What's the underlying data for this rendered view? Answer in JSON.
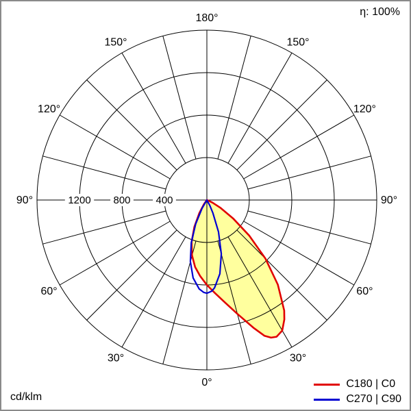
{
  "chart_data": {
    "type": "polar_photometric",
    "title": "",
    "unit": "cd/klm",
    "efficiency": "η: 100%",
    "radial_max": 1600,
    "ring_values": [
      400,
      800,
      1200,
      1600
    ],
    "radial_ticks": [
      1200,
      800,
      400
    ],
    "spoke_step_deg": 15,
    "angle_label_step_deg": 30,
    "angle_labels": [
      "0°",
      "30°",
      "60°",
      "90°",
      "120°",
      "150°",
      "180°"
    ],
    "grid_color": "#000000",
    "series": [
      {
        "name": "C180 | C0",
        "color": "#e10000",
        "fill": "#ffff9e",
        "points_gamma_cdklm": [
          [
            -40,
            0
          ],
          [
            -35,
            50
          ],
          [
            -30,
            140
          ],
          [
            -25,
            280
          ],
          [
            -20,
            420
          ],
          [
            -15,
            540
          ],
          [
            -10,
            640
          ],
          [
            -5,
            720
          ],
          [
            0,
            800
          ],
          [
            5,
            880
          ],
          [
            10,
            980
          ],
          [
            15,
            1110
          ],
          [
            20,
            1280
          ],
          [
            23,
            1390
          ],
          [
            25,
            1430
          ],
          [
            27,
            1445
          ],
          [
            30,
            1420
          ],
          [
            33,
            1340
          ],
          [
            35,
            1270
          ],
          [
            40,
            1040
          ],
          [
            45,
            780
          ],
          [
            50,
            520
          ],
          [
            55,
            300
          ],
          [
            60,
            150
          ],
          [
            65,
            60
          ],
          [
            70,
            15
          ],
          [
            75,
            0
          ]
        ]
      },
      {
        "name": "C270 | C90",
        "color": "#0000d2",
        "fill": "none",
        "points_gamma_cdklm": [
          [
            -35,
            0
          ],
          [
            -30,
            90
          ],
          [
            -25,
            250
          ],
          [
            -20,
            430
          ],
          [
            -15,
            600
          ],
          [
            -10,
            745
          ],
          [
            -5,
            840
          ],
          [
            -2,
            870
          ],
          [
            0,
            878
          ],
          [
            3,
            860
          ],
          [
            5,
            830
          ],
          [
            10,
            705
          ],
          [
            15,
            525
          ],
          [
            20,
            320
          ],
          [
            25,
            135
          ],
          [
            28,
            60
          ],
          [
            32,
            0
          ]
        ]
      }
    ]
  }
}
